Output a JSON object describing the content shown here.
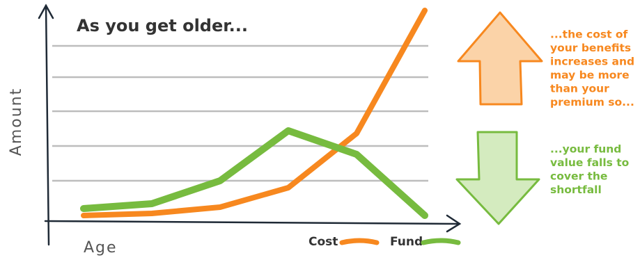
{
  "chart_data": {
    "type": "line",
    "title": "As you get older...",
    "y_label": "Amount",
    "x_label": "Age",
    "categories": [
      null,
      null,
      null,
      null,
      null,
      null
    ],
    "ylim": [
      0,
      310
    ],
    "grid": true,
    "legend": "bottom",
    "series": [
      {
        "name": "Cost",
        "color": "#f7881f",
        "values": [
          8,
          11,
          20,
          48,
          126,
          303
        ]
      },
      {
        "name": "Fund",
        "color": "#77bb3f",
        "values": [
          18,
          25,
          58,
          130,
          96,
          8
        ]
      }
    ],
    "annotations": [
      {
        "color": "#f7881f",
        "lines": [
          "...the cost of",
          "your benefits",
          "increases and",
          "may be more",
          "than your",
          "premium so..."
        ]
      },
      {
        "color": "#77bb3f",
        "lines": [
          "...your fund",
          "value falls to",
          "cover the",
          "shortfall"
        ]
      }
    ]
  }
}
